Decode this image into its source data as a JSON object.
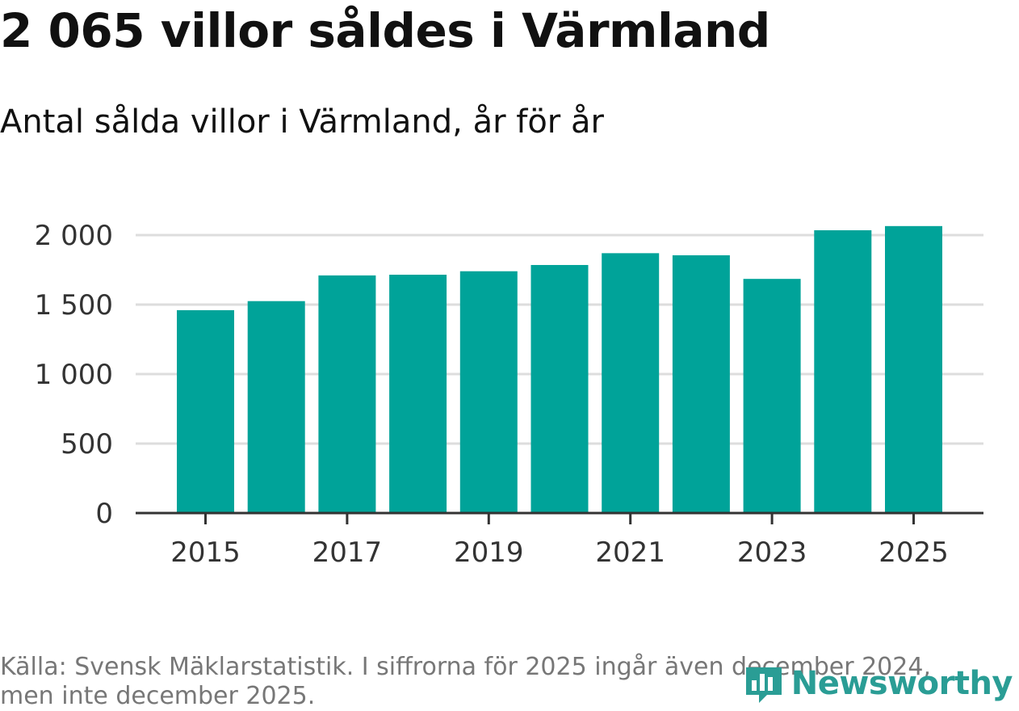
{
  "title": "2 065 villor såldes i Värmland",
  "subtitle": "Antal sålda villor i Värmland, år för år",
  "source": "Källa: Svensk Mäklarstatistik. I siffrorna för 2025 ingår även december 2024, men inte december 2025.",
  "logo": {
    "text": "Newsworthy",
    "icon": "newsworthy-logo-icon"
  },
  "colors": {
    "bar": "#00a399",
    "grid": "#dddddd",
    "axis": "#333333",
    "logo": "#2a9d95"
  },
  "chart_data": {
    "type": "bar",
    "title": "2 065 villor såldes i Värmland",
    "subtitle": "Antal sålda villor i Värmland, år för år",
    "categories": [
      "2015",
      "2016",
      "2017",
      "2018",
      "2019",
      "2020",
      "2021",
      "2022",
      "2023",
      "2024",
      "2025"
    ],
    "values": [
      1460,
      1525,
      1710,
      1715,
      1740,
      1785,
      1870,
      1855,
      1685,
      2035,
      2065
    ],
    "xticks": [
      "2015",
      "2017",
      "2019",
      "2021",
      "2023",
      "2025"
    ],
    "yticks": [
      0,
      500,
      1000,
      1500,
      2000
    ],
    "ytick_labels": [
      "0",
      "500",
      "1 000",
      "1 500",
      "2 000"
    ],
    "ylim": [
      0,
      2100
    ],
    "xlabel": "",
    "ylabel": "",
    "grid": true
  }
}
